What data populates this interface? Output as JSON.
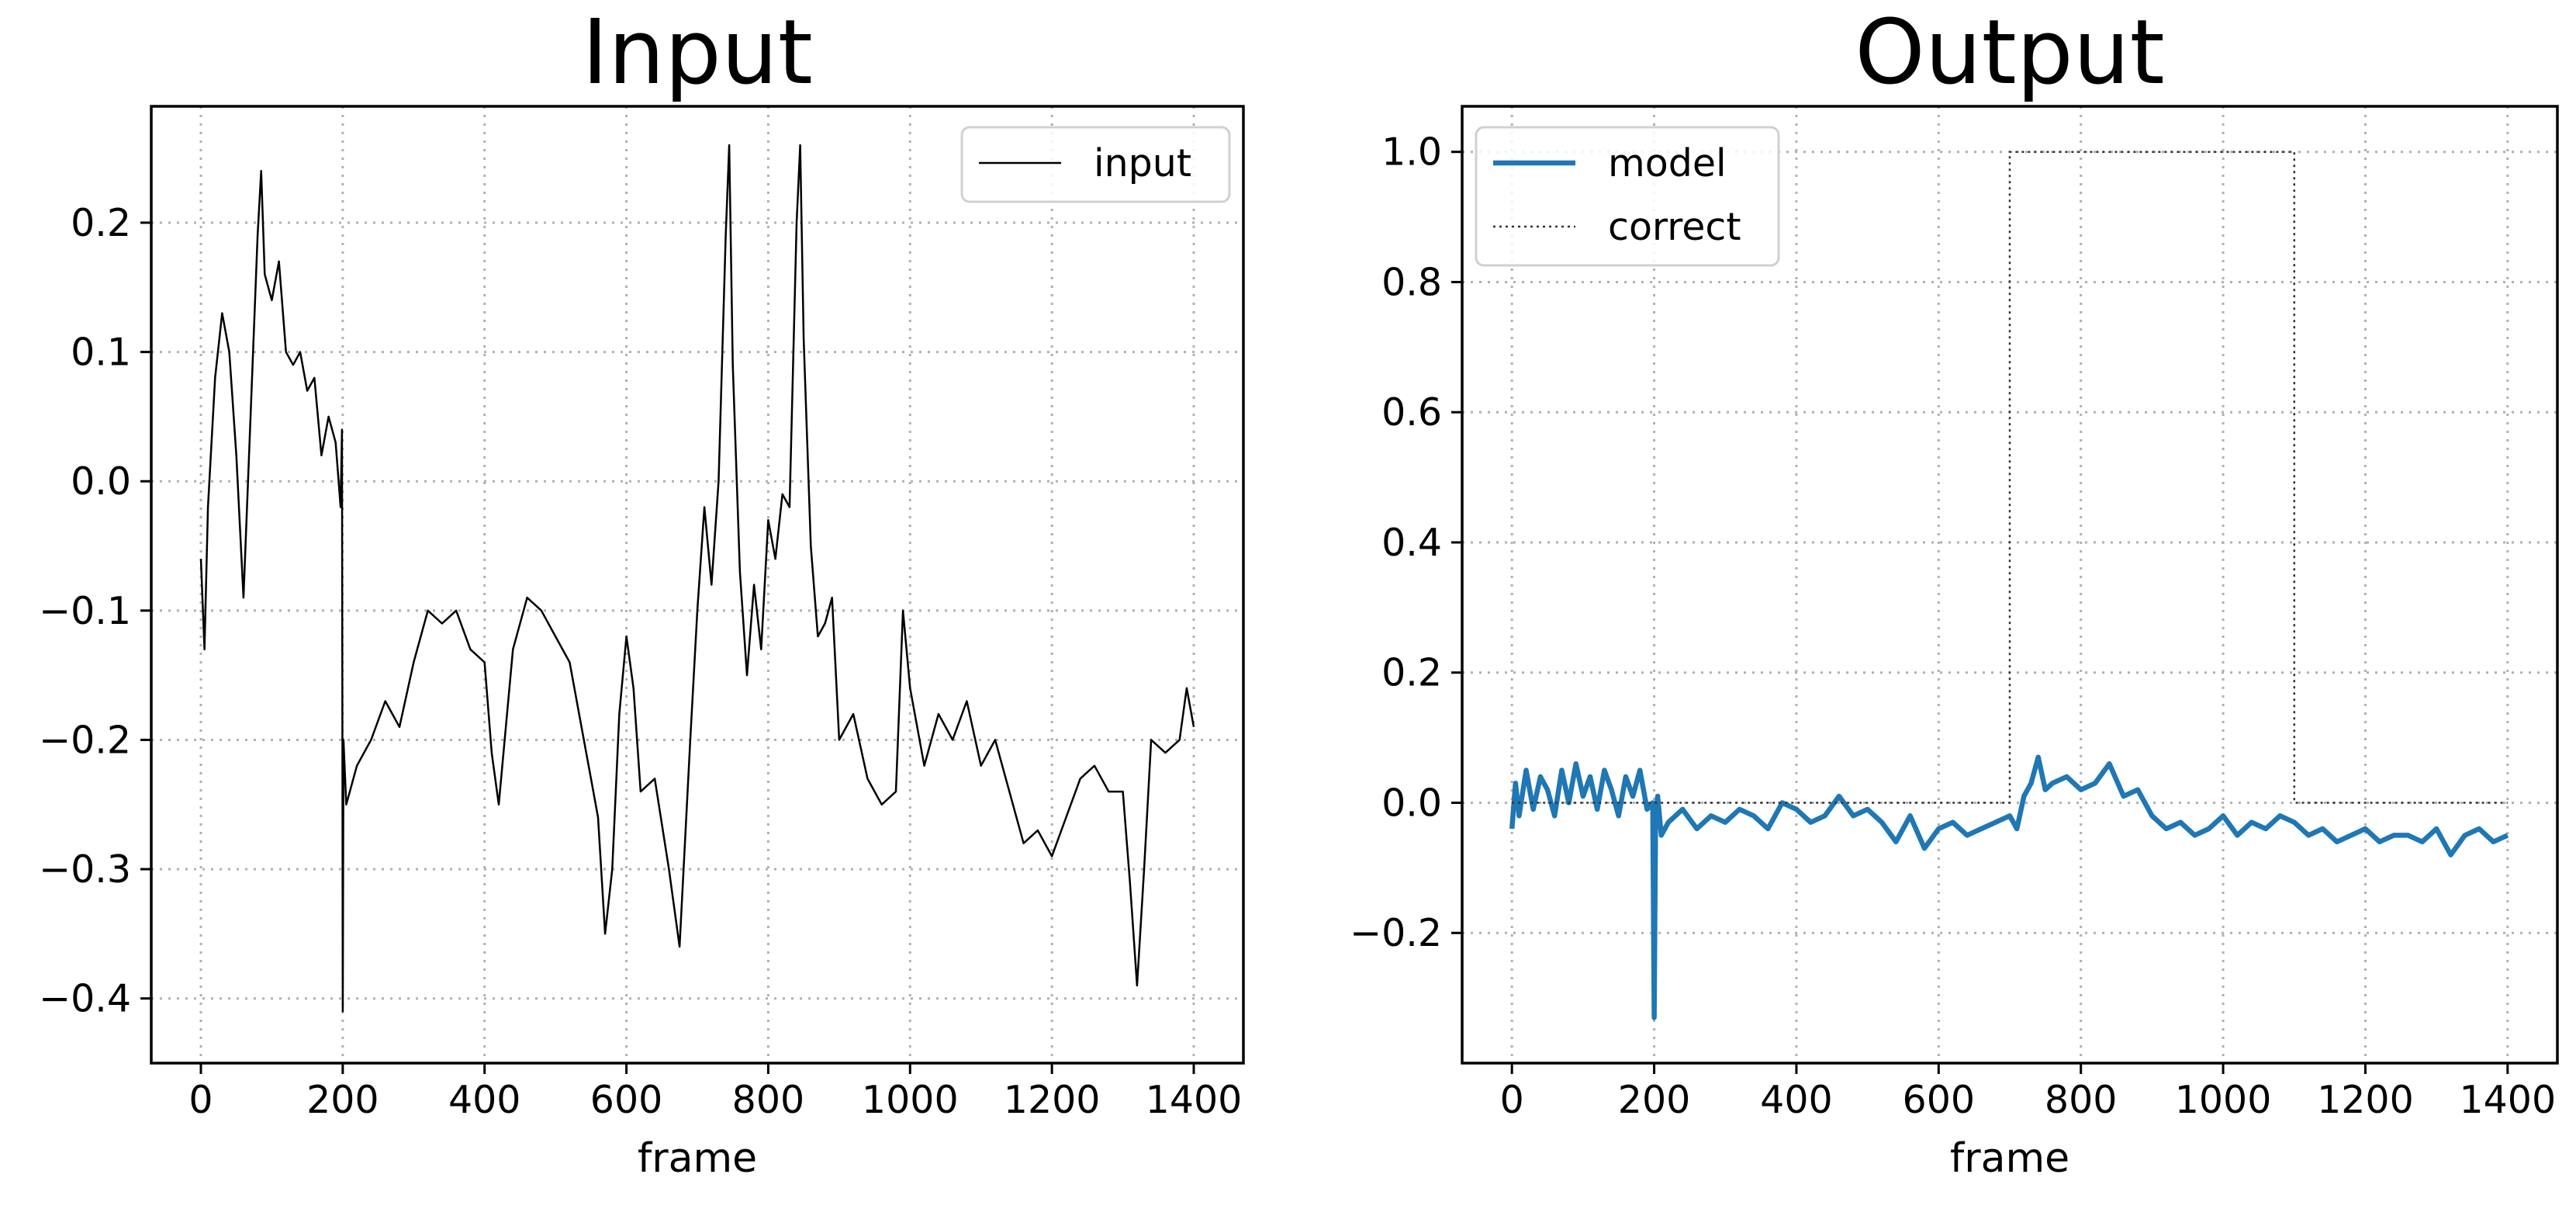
{
  "chart_data": [
    {
      "type": "line",
      "title": "Input",
      "xlabel": "frame",
      "ylabel": "",
      "xlim": [
        -70,
        1470
      ],
      "ylim": [
        -0.45,
        0.29
      ],
      "xticks": [
        0,
        200,
        400,
        600,
        800,
        1000,
        1200,
        1400
      ],
      "xtick_labels": [
        "0",
        "200",
        "400",
        "600",
        "800",
        "1000",
        "1200",
        "1400"
      ],
      "yticks": [
        -0.4,
        -0.3,
        -0.2,
        -0.1,
        0.0,
        0.1,
        0.2
      ],
      "ytick_labels": [
        "−0.4",
        "−0.3",
        "−0.2",
        "−0.1",
        "0.0",
        "0.1",
        "0.2"
      ],
      "grid": true,
      "legend_position": "upper right",
      "series": [
        {
          "name": "input",
          "color": "#000000",
          "style": "solid-thin",
          "x": [
            0,
            5,
            10,
            20,
            30,
            40,
            50,
            60,
            70,
            80,
            85,
            90,
            100,
            110,
            120,
            130,
            140,
            150,
            160,
            170,
            180,
            190,
            197,
            199,
            200,
            201,
            205,
            220,
            240,
            260,
            280,
            300,
            320,
            340,
            360,
            380,
            400,
            410,
            420,
            440,
            460,
            480,
            500,
            520,
            540,
            550,
            560,
            570,
            580,
            590,
            600,
            610,
            620,
            640,
            660,
            675,
            690,
            700,
            710,
            720,
            730,
            740,
            745,
            750,
            760,
            770,
            780,
            790,
            800,
            810,
            820,
            830,
            840,
            845,
            850,
            860,
            870,
            880,
            890,
            900,
            920,
            940,
            960,
            980,
            990,
            1000,
            1020,
            1040,
            1060,
            1080,
            1100,
            1120,
            1140,
            1160,
            1180,
            1200,
            1220,
            1240,
            1260,
            1280,
            1300,
            1310,
            1320,
            1330,
            1340,
            1360,
            1380,
            1390,
            1400
          ],
          "y": [
            -0.06,
            -0.13,
            -0.02,
            0.08,
            0.13,
            0.1,
            0.02,
            -0.09,
            0.05,
            0.19,
            0.24,
            0.16,
            0.14,
            0.17,
            0.1,
            0.09,
            0.1,
            0.07,
            0.08,
            0.02,
            0.05,
            0.03,
            -0.02,
            0.04,
            -0.41,
            -0.2,
            -0.25,
            -0.22,
            -0.2,
            -0.17,
            -0.19,
            -0.14,
            -0.1,
            -0.11,
            -0.1,
            -0.13,
            -0.14,
            -0.21,
            -0.25,
            -0.13,
            -0.09,
            -0.1,
            -0.12,
            -0.14,
            -0.2,
            -0.23,
            -0.26,
            -0.35,
            -0.3,
            -0.18,
            -0.12,
            -0.16,
            -0.24,
            -0.23,
            -0.3,
            -0.36,
            -0.2,
            -0.1,
            -0.02,
            -0.08,
            0.0,
            0.19,
            0.26,
            0.09,
            -0.07,
            -0.15,
            -0.08,
            -0.13,
            -0.03,
            -0.06,
            -0.01,
            -0.02,
            0.2,
            0.26,
            0.11,
            -0.05,
            -0.12,
            -0.11,
            -0.09,
            -0.2,
            -0.18,
            -0.23,
            -0.25,
            -0.24,
            -0.1,
            -0.16,
            -0.22,
            -0.18,
            -0.2,
            -0.17,
            -0.22,
            -0.2,
            -0.24,
            -0.28,
            -0.27,
            -0.29,
            -0.26,
            -0.23,
            -0.22,
            -0.24,
            -0.24,
            -0.31,
            -0.39,
            -0.3,
            -0.2,
            -0.21,
            -0.2,
            -0.16,
            -0.19
          ]
        }
      ]
    },
    {
      "type": "line",
      "title": "Output",
      "xlabel": "frame",
      "ylabel": "",
      "xlim": [
        -70,
        1470
      ],
      "ylim": [
        -0.4,
        1.07
      ],
      "xticks": [
        0,
        200,
        400,
        600,
        800,
        1000,
        1200,
        1400
      ],
      "xtick_labels": [
        "0",
        "200",
        "400",
        "600",
        "800",
        "1000",
        "1200",
        "1400"
      ],
      "yticks": [
        -0.2,
        0.0,
        0.2,
        0.4,
        0.6,
        0.8,
        1.0
      ],
      "ytick_labels": [
        "−0.2",
        "0.0",
        "0.2",
        "0.4",
        "0.6",
        "0.8",
        "1.0"
      ],
      "grid": true,
      "legend_position": "upper left",
      "series": [
        {
          "name": "model",
          "color": "#1f77b4",
          "style": "solid-thick",
          "x": [
            0,
            5,
            10,
            20,
            30,
            40,
            50,
            60,
            70,
            80,
            90,
            100,
            110,
            120,
            130,
            140,
            150,
            160,
            170,
            180,
            190,
            198,
            200,
            202,
            205,
            210,
            220,
            240,
            260,
            280,
            300,
            320,
            340,
            360,
            380,
            400,
            420,
            440,
            460,
            480,
            500,
            520,
            540,
            560,
            580,
            600,
            620,
            640,
            660,
            680,
            700,
            710,
            720,
            730,
            740,
            750,
            760,
            780,
            800,
            820,
            840,
            860,
            880,
            900,
            920,
            940,
            960,
            980,
            1000,
            1020,
            1040,
            1060,
            1080,
            1100,
            1120,
            1140,
            1160,
            1180,
            1200,
            1220,
            1240,
            1260,
            1280,
            1300,
            1320,
            1340,
            1360,
            1380,
            1400
          ],
          "y": [
            -0.04,
            0.03,
            -0.02,
            0.05,
            -0.01,
            0.04,
            0.02,
            -0.02,
            0.05,
            0.0,
            0.06,
            0.01,
            0.04,
            -0.01,
            0.05,
            0.02,
            -0.02,
            0.04,
            0.01,
            0.05,
            -0.01,
            0.0,
            -0.33,
            -0.02,
            0.01,
            -0.05,
            -0.03,
            -0.01,
            -0.04,
            -0.02,
            -0.03,
            -0.01,
            -0.02,
            -0.04,
            0.0,
            -0.01,
            -0.03,
            -0.02,
            0.01,
            -0.02,
            -0.01,
            -0.03,
            -0.06,
            -0.02,
            -0.07,
            -0.04,
            -0.03,
            -0.05,
            -0.04,
            -0.03,
            -0.02,
            -0.04,
            0.01,
            0.03,
            0.07,
            0.02,
            0.03,
            0.04,
            0.02,
            0.03,
            0.06,
            0.01,
            0.02,
            -0.02,
            -0.04,
            -0.03,
            -0.05,
            -0.04,
            -0.02,
            -0.05,
            -0.03,
            -0.04,
            -0.02,
            -0.03,
            -0.05,
            -0.04,
            -0.06,
            -0.05,
            -0.04,
            -0.06,
            -0.05,
            -0.05,
            -0.06,
            -0.04,
            -0.08,
            -0.05,
            -0.04,
            -0.06,
            -0.05
          ]
        },
        {
          "name": "correct",
          "color": "#333333",
          "style": "dotted",
          "x": [
            0,
            700,
            700,
            1100,
            1100,
            1400
          ],
          "y": [
            0,
            0,
            1,
            1,
            0,
            0
          ]
        }
      ]
    }
  ]
}
